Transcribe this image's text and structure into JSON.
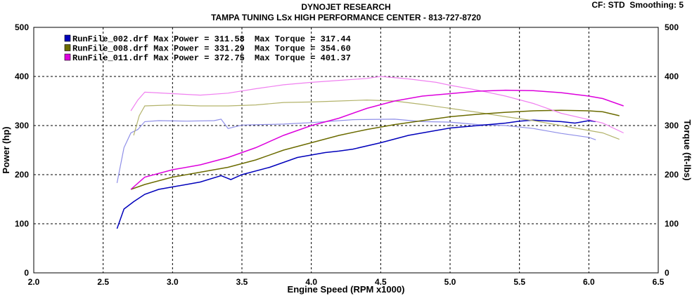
{
  "header": {
    "title": "DYNOJET RESEARCH",
    "subtitle": "TAMPA TUNING LSx HIGH PERFORMANCE CENTER - 813-727-8720",
    "cf_label": "CF: STD",
    "smoothing_label": "Smoothing: 5"
  },
  "chart_data": {
    "type": "line",
    "xlabel": "Engine Speed (RPM x1000)",
    "ylabel_left": "Power (hp)",
    "ylabel_right": "Torque (ft-lbs)",
    "xlim": [
      2.0,
      6.5
    ],
    "ylim": [
      0,
      500
    ],
    "xticks": [
      "2.0",
      "2.5",
      "3.0",
      "3.5",
      "4.0",
      "4.5",
      "5.0",
      "5.5",
      "6.0",
      "6.5"
    ],
    "yticks_left": [
      "0",
      "100",
      "200",
      "300",
      "400",
      "500"
    ],
    "yticks_right": [
      "0",
      "100",
      "200",
      "300",
      "400",
      "500"
    ],
    "grid": true,
    "legend_position": "top-left",
    "runs": [
      {
        "file": "RunFile_002.drf",
        "max_power_label": "Max Power = 311.58",
        "max_torque_label": "Max Torque = 317.44",
        "power_color": "#0000bb",
        "torque_color": "#8f8fe8",
        "power": [
          [
            2.6,
            90
          ],
          [
            2.65,
            130
          ],
          [
            2.72,
            145
          ],
          [
            2.8,
            160
          ],
          [
            2.9,
            170
          ],
          [
            3.0,
            175
          ],
          [
            3.2,
            185
          ],
          [
            3.35,
            198
          ],
          [
            3.42,
            190
          ],
          [
            3.5,
            200
          ],
          [
            3.7,
            215
          ],
          [
            3.9,
            235
          ],
          [
            4.1,
            245
          ],
          [
            4.2,
            248
          ],
          [
            4.3,
            252
          ],
          [
            4.5,
            265
          ],
          [
            4.7,
            280
          ],
          [
            4.9,
            290
          ],
          [
            5.0,
            295
          ],
          [
            5.2,
            300
          ],
          [
            5.4,
            305
          ],
          [
            5.5,
            309
          ],
          [
            5.6,
            311
          ],
          [
            5.8,
            308
          ],
          [
            5.9,
            305
          ],
          [
            6.0,
            310
          ],
          [
            6.05,
            308
          ]
        ],
        "torque": [
          [
            2.6,
            183
          ],
          [
            2.65,
            255
          ],
          [
            2.7,
            285
          ],
          [
            2.75,
            292
          ],
          [
            2.8,
            308
          ],
          [
            2.9,
            310
          ],
          [
            3.1,
            309
          ],
          [
            3.3,
            310
          ],
          [
            3.35,
            313
          ],
          [
            3.4,
            294
          ],
          [
            3.5,
            301
          ],
          [
            3.8,
            303
          ],
          [
            4.0,
            306
          ],
          [
            4.3,
            312
          ],
          [
            4.6,
            313
          ],
          [
            4.8,
            308
          ],
          [
            5.0,
            307
          ],
          [
            5.2,
            302
          ],
          [
            5.4,
            300
          ],
          [
            5.6,
            294
          ],
          [
            5.7,
            289
          ],
          [
            5.8,
            284
          ],
          [
            6.0,
            276
          ],
          [
            6.05,
            271
          ]
        ]
      },
      {
        "file": "RunFile_008.drf",
        "max_power_label": "Max Power = 331.29",
        "max_torque_label": "Max Torque = 354.60",
        "power_color": "#6b6b00",
        "torque_color": "#b3b36b",
        "power": [
          [
            2.7,
            170
          ],
          [
            2.8,
            180
          ],
          [
            3.0,
            195
          ],
          [
            3.2,
            205
          ],
          [
            3.4,
            215
          ],
          [
            3.6,
            230
          ],
          [
            3.8,
            250
          ],
          [
            4.0,
            265
          ],
          [
            4.2,
            280
          ],
          [
            4.4,
            292
          ],
          [
            4.6,
            302
          ],
          [
            4.8,
            310
          ],
          [
            5.0,
            318
          ],
          [
            5.2,
            323
          ],
          [
            5.4,
            327
          ],
          [
            5.6,
            330
          ],
          [
            5.8,
            331
          ],
          [
            6.0,
            330
          ],
          [
            6.1,
            328
          ],
          [
            6.22,
            320
          ]
        ],
        "torque": [
          [
            2.72,
            280
          ],
          [
            2.76,
            320
          ],
          [
            2.8,
            340
          ],
          [
            3.0,
            342
          ],
          [
            3.2,
            340
          ],
          [
            3.4,
            340
          ],
          [
            3.6,
            342
          ],
          [
            3.8,
            347
          ],
          [
            4.0,
            348
          ],
          [
            4.2,
            350
          ],
          [
            4.4,
            352
          ],
          [
            4.6,
            350
          ],
          [
            4.8,
            343
          ],
          [
            5.0,
            335
          ],
          [
            5.2,
            327
          ],
          [
            5.4,
            318
          ],
          [
            5.6,
            310
          ],
          [
            5.8,
            300
          ],
          [
            6.0,
            290
          ],
          [
            6.1,
            285
          ],
          [
            6.22,
            272
          ]
        ]
      },
      {
        "file": "RunFile_011.drf",
        "max_power_label": "Max Power = 372.75",
        "max_torque_label": "Max Torque = 401.37",
        "power_color": "#dd00dd",
        "torque_color": "#f080f0",
        "power": [
          [
            2.7,
            170
          ],
          [
            2.8,
            195
          ],
          [
            3.0,
            210
          ],
          [
            3.2,
            220
          ],
          [
            3.4,
            235
          ],
          [
            3.6,
            255
          ],
          [
            3.8,
            280
          ],
          [
            4.0,
            300
          ],
          [
            4.2,
            315
          ],
          [
            4.4,
            335
          ],
          [
            4.6,
            350
          ],
          [
            4.8,
            360
          ],
          [
            5.0,
            365
          ],
          [
            5.2,
            370
          ],
          [
            5.4,
            372
          ],
          [
            5.6,
            371
          ],
          [
            5.8,
            367
          ],
          [
            6.0,
            360
          ],
          [
            6.1,
            355
          ],
          [
            6.25,
            340
          ]
        ],
        "torque": [
          [
            2.7,
            330
          ],
          [
            2.75,
            352
          ],
          [
            2.8,
            368
          ],
          [
            3.0,
            365
          ],
          [
            3.2,
            362
          ],
          [
            3.4,
            366
          ],
          [
            3.6,
            375
          ],
          [
            3.8,
            383
          ],
          [
            4.0,
            388
          ],
          [
            4.2,
            392
          ],
          [
            4.4,
            396
          ],
          [
            4.5,
            400
          ],
          [
            4.7,
            395
          ],
          [
            4.9,
            388
          ],
          [
            5.0,
            382
          ],
          [
            5.2,
            372
          ],
          [
            5.4,
            360
          ],
          [
            5.6,
            345
          ],
          [
            5.8,
            325
          ],
          [
            6.0,
            312
          ],
          [
            6.1,
            305
          ],
          [
            6.25,
            285
          ]
        ]
      }
    ]
  }
}
